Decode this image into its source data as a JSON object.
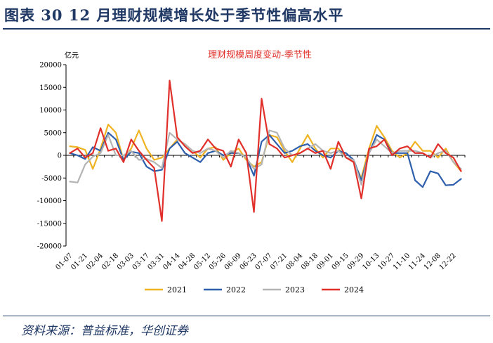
{
  "header": {
    "figure_title": "图表 30    12 月理财规模增长处于季节性偏高水平"
  },
  "footer": {
    "source": "资料来源：普益标准，华创证券"
  },
  "chart_data": {
    "type": "line",
    "title": "理财规模周度变动-季节性",
    "ylabel": "亿元",
    "xlabel": "",
    "ylim": [
      -20000,
      20000
    ],
    "yticks": [
      20000,
      15000,
      10000,
      5000,
      0,
      -5000,
      -10000,
      -15000,
      -20000
    ],
    "tick_labels": [
      "01-07",
      "01-21",
      "02-04",
      "02-18",
      "03-03",
      "03-17",
      "03-31",
      "04-14",
      "04-28",
      "05-12",
      "05-26",
      "06-09",
      "06-23",
      "07-07",
      "07-21",
      "08-04",
      "08-18",
      "09-01",
      "09-15",
      "09-29",
      "10-13",
      "10-27",
      "11-10",
      "11-24",
      "12-08",
      "12-22"
    ],
    "x": [
      "01-07",
      "01-14",
      "01-21",
      "01-28",
      "02-04",
      "02-11",
      "02-18",
      "02-25",
      "03-03",
      "03-10",
      "03-17",
      "03-24",
      "03-31",
      "04-07",
      "04-14",
      "04-21",
      "04-28",
      "05-05",
      "05-12",
      "05-19",
      "05-26",
      "06-02",
      "06-09",
      "06-16",
      "06-23",
      "06-30",
      "07-07",
      "07-14",
      "07-21",
      "07-28",
      "08-04",
      "08-11",
      "08-18",
      "08-25",
      "09-01",
      "09-08",
      "09-15",
      "09-22",
      "09-29",
      "10-06",
      "10-13",
      "10-20",
      "10-27",
      "11-03",
      "11-10",
      "11-17",
      "11-24",
      "12-01",
      "12-08",
      "12-15",
      "12-22",
      "12-29"
    ],
    "grid": false,
    "legend_position": "bottom",
    "series": [
      {
        "name": "2021",
        "color": "#f0b323",
        "values": [
          2000,
          1800,
          1200,
          -3000,
          1500,
          6800,
          5000,
          -1000,
          1500,
          5500,
          1500,
          -1000,
          -500,
          1500,
          3500,
          2500,
          1000,
          -500,
          1500,
          1800,
          -1000,
          500,
          1500,
          -1000,
          -2500,
          -1500,
          4500,
          4000,
          1000,
          -1500,
          1500,
          4500,
          1500,
          -500,
          1500,
          1500,
          -500,
          -1500,
          -5000,
          1500,
          6500,
          4000,
          1000,
          -500,
          500,
          3000,
          1000,
          1000,
          -500,
          1500,
          -1500,
          -3500
        ]
      },
      {
        "name": "2022",
        "color": "#2e5fac",
        "values": [
          500,
          0,
          -800,
          1800,
          1000,
          5000,
          3500,
          -1000,
          800,
          500,
          -2500,
          -3500,
          -3200,
          1500,
          3000,
          500,
          -500,
          -1500,
          500,
          1000,
          0,
          500,
          500,
          -500,
          -4500,
          3000,
          4500,
          2500,
          500,
          1000,
          2000,
          2500,
          1000,
          0,
          -500,
          1000,
          500,
          -1000,
          -5500,
          500,
          4500,
          3500,
          500,
          500,
          500,
          -5500,
          -7000,
          -3500,
          -4000,
          -6600,
          -6500,
          -5200
        ]
      },
      {
        "name": "2023",
        "color": "#b4b4b4",
        "values": [
          -5800,
          -6000,
          -2000,
          -300,
          500,
          4500,
          0,
          0,
          1000,
          -1000,
          -800,
          -1500,
          -2800,
          5000,
          3500,
          2500,
          1000,
          500,
          1500,
          1000,
          -500,
          1000,
          500,
          -500,
          -3000,
          -2000,
          5500,
          5000,
          1500,
          0,
          500,
          1500,
          2500,
          1000,
          500,
          1000,
          -500,
          -1000,
          -6500,
          500,
          3500,
          2000,
          500,
          1000,
          1000,
          1000,
          500,
          -500,
          500,
          1000,
          -1500,
          -3000
        ]
      },
      {
        "name": "2024",
        "color": "#e12f2a",
        "values": [
          500,
          1500,
          -500,
          500,
          6000,
          1000,
          1500,
          -1500,
          3500,
          1000,
          -1000,
          -2800,
          -14500,
          16500,
          4000,
          2000,
          500,
          1000,
          3500,
          1500,
          1000,
          -2500,
          3500,
          500,
          -12500,
          12500,
          2500,
          1500,
          -500,
          0,
          500,
          1500,
          500,
          1000,
          -3000,
          3000,
          -500,
          -1500,
          -9500,
          1500,
          2000,
          3500,
          0,
          1500,
          2000,
          500,
          500,
          -500,
          2500,
          500,
          -500,
          -3500
        ]
      }
    ]
  }
}
